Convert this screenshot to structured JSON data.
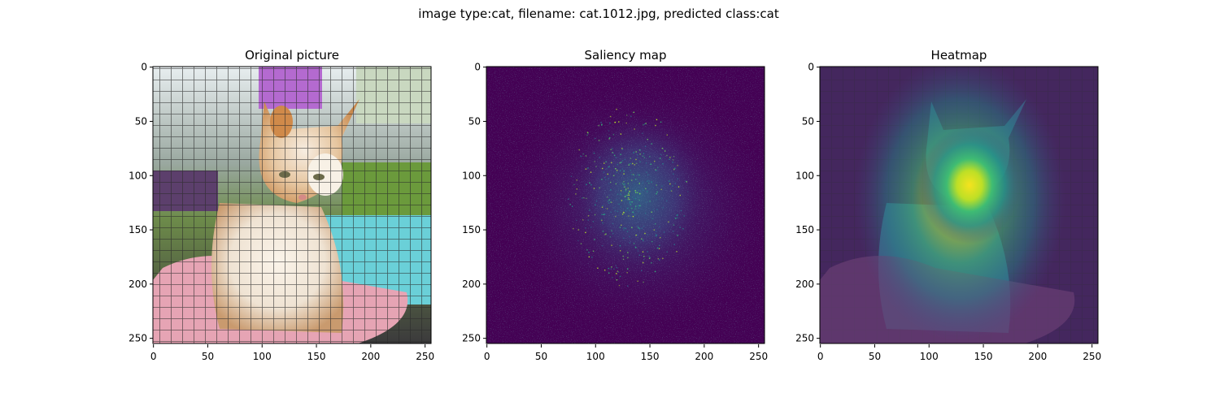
{
  "figure": {
    "suptitle": "image type:cat, filename: cat.1012.jpg, predicted class:cat"
  },
  "chart_data": [
    {
      "type": "heatmap",
      "title": "Original picture",
      "content": "photo of an orange and white cat sitting on a pink towel inside a wire cage",
      "xticks": [
        0,
        50,
        100,
        150,
        200,
        250
      ],
      "yticks": [
        0,
        50,
        100,
        150,
        200,
        250
      ],
      "xlim": [
        0,
        255
      ],
      "ylim": [
        255,
        0
      ],
      "xlabel": "",
      "ylabel": ""
    },
    {
      "type": "heatmap",
      "title": "Saliency map",
      "colormap": "viridis",
      "hotspot": {
        "x": 140,
        "y": 110
      },
      "xticks": [
        0,
        50,
        100,
        150,
        200,
        250
      ],
      "yticks": [
        0,
        50,
        100,
        150,
        200,
        250
      ],
      "xlim": [
        0,
        255
      ],
      "ylim": [
        255,
        0
      ],
      "xlabel": "",
      "ylabel": ""
    },
    {
      "type": "heatmap",
      "title": "Heatmap",
      "colormap": "viridis",
      "hotspot": {
        "x": 140,
        "y": 110
      },
      "xticks": [
        0,
        50,
        100,
        150,
        200,
        250
      ],
      "yticks": [
        0,
        50,
        100,
        150,
        200,
        250
      ],
      "xlim": [
        0,
        255
      ],
      "ylim": [
        255,
        0
      ],
      "xlabel": "",
      "ylabel": ""
    }
  ]
}
